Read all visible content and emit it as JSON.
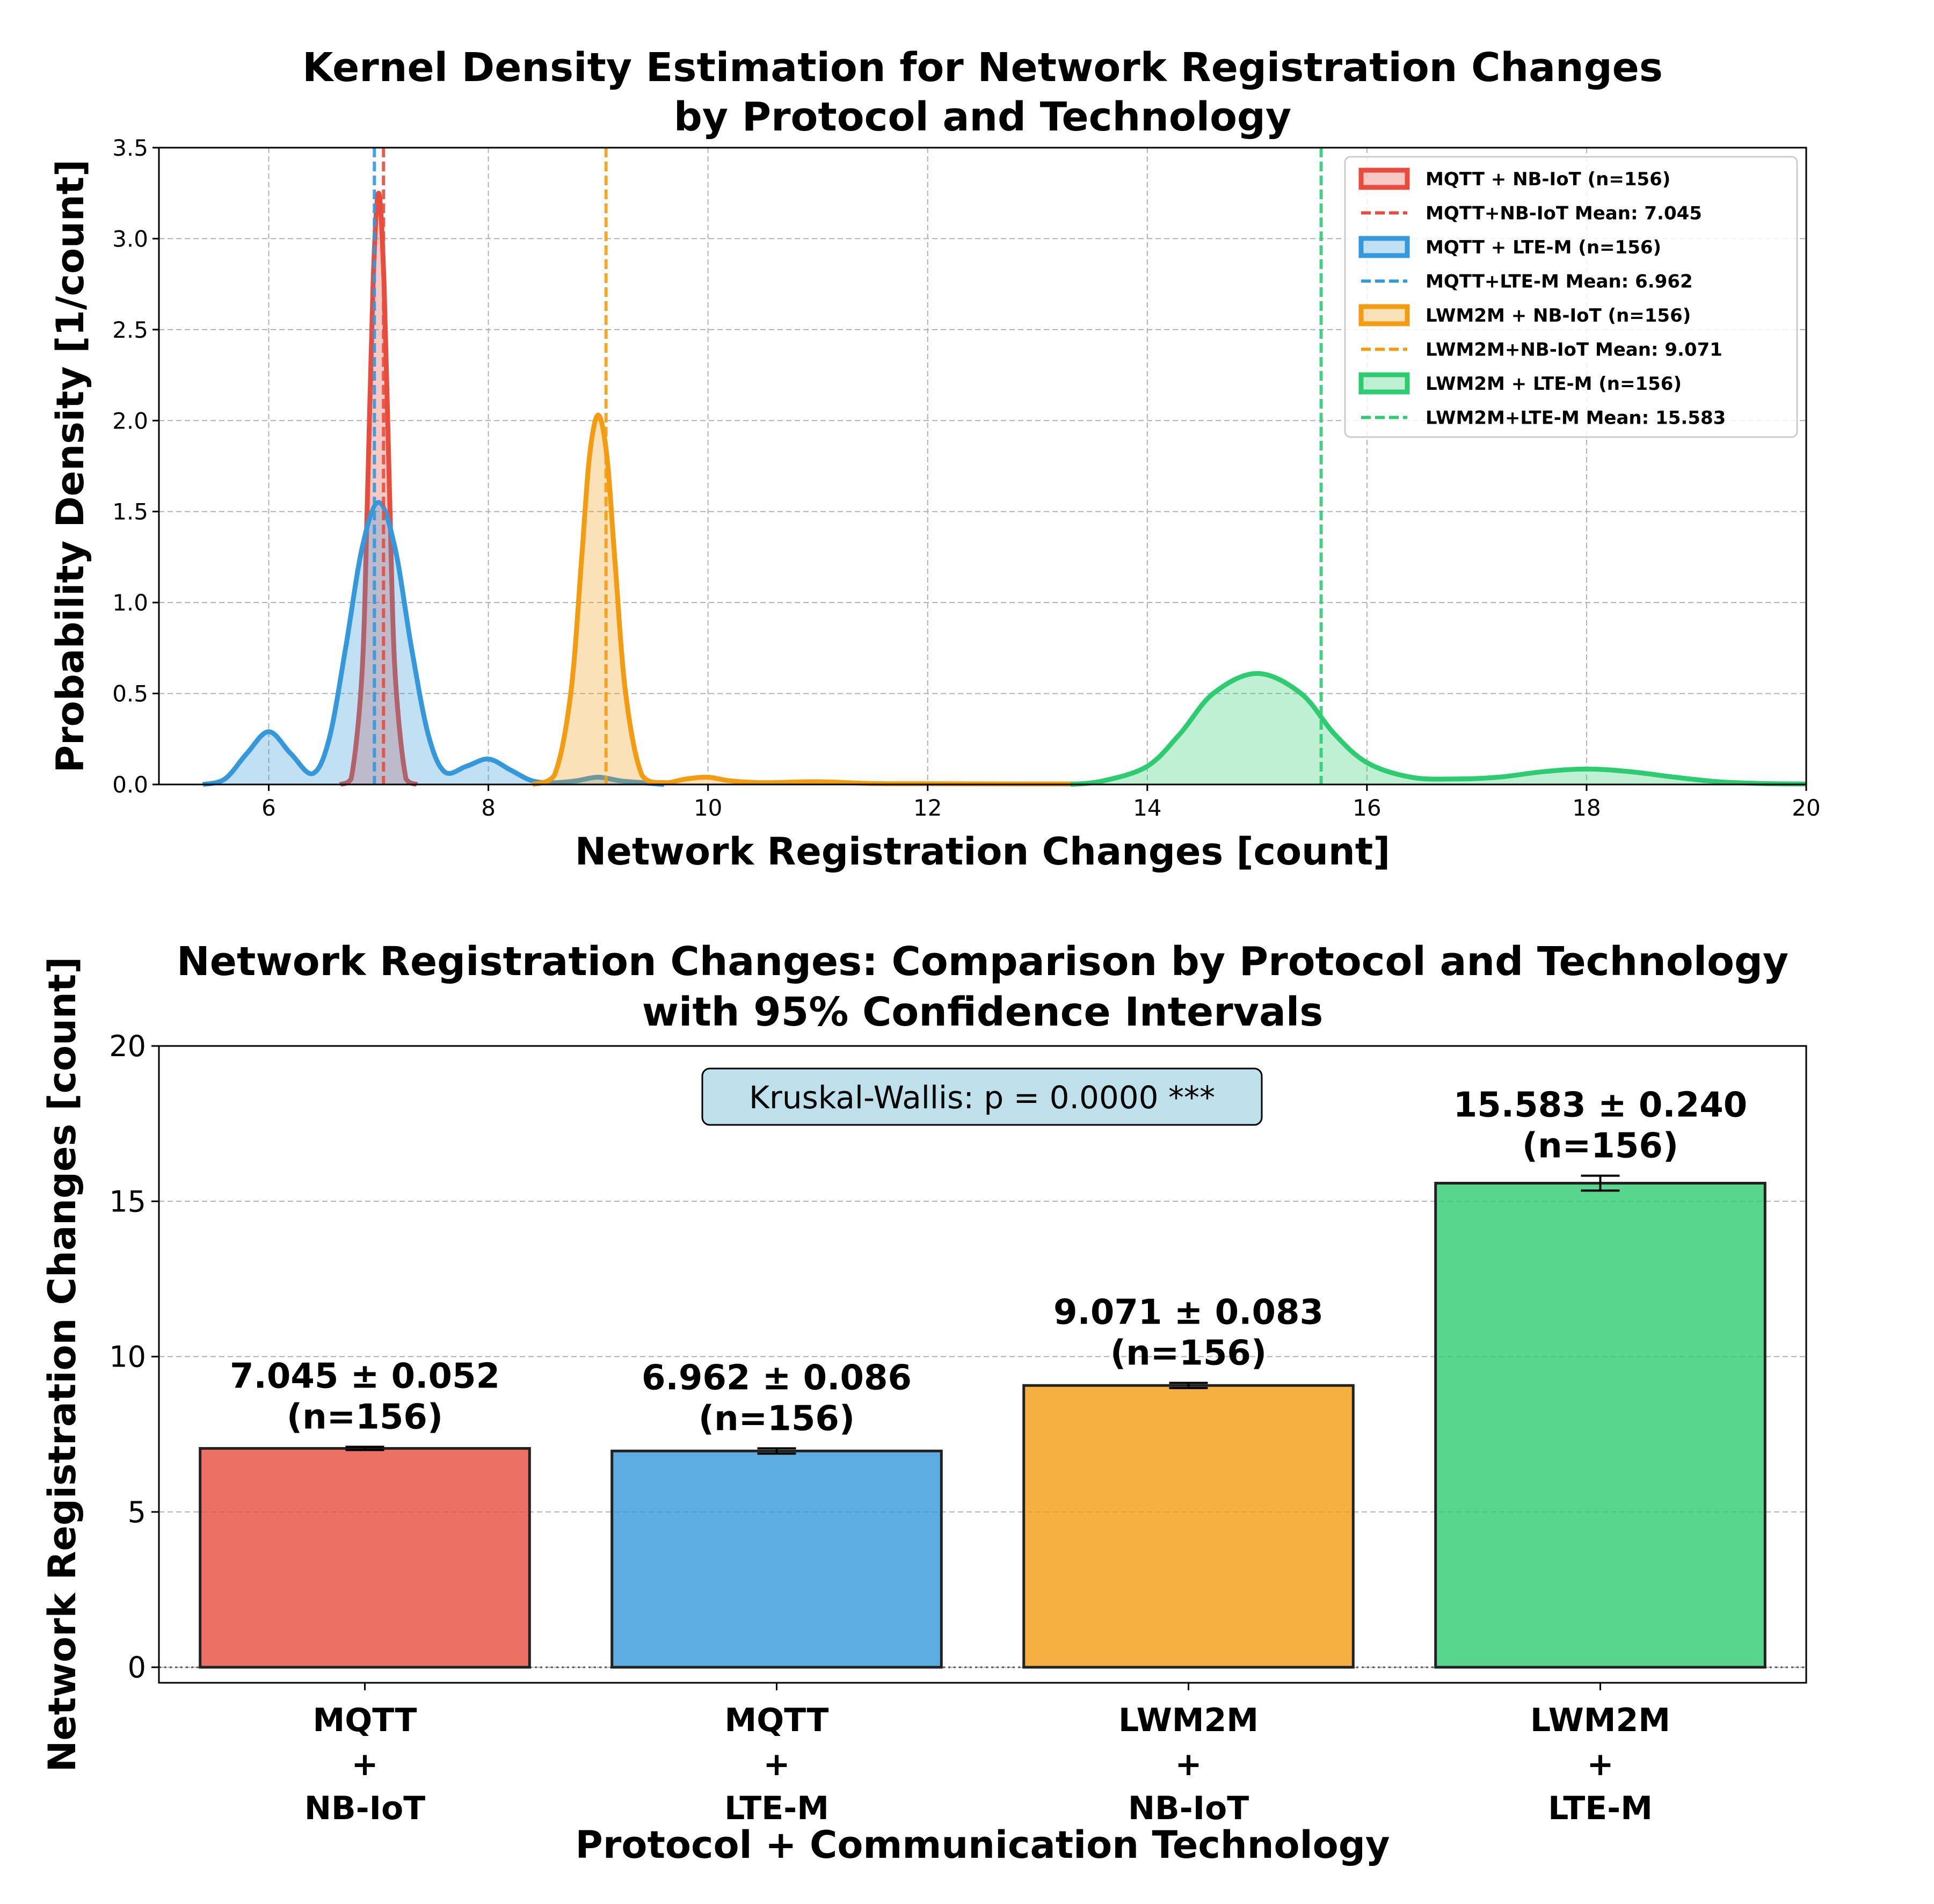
{
  "kde_panel": {
    "title_line1": "Kernel Density Estimation for Network Registration Changes",
    "title_line2": "by Protocol and Technology",
    "xlabel": "Network Registration Changes [count]",
    "ylabel": "Probability Density [1/count]",
    "legend": [
      {
        "label": "MQTT + NB-IoT (n=156)",
        "kind": "patch",
        "color": "#e74c3c"
      },
      {
        "label": "MQTT+NB-IoT Mean: 7.045",
        "kind": "dash",
        "color": "#e74c3c"
      },
      {
        "label": "MQTT + LTE-M (n=156)",
        "kind": "patch",
        "color": "#3498db"
      },
      {
        "label": "MQTT+LTE-M Mean: 6.962",
        "kind": "dash",
        "color": "#3498db"
      },
      {
        "label": "LWM2M + NB-IoT (n=156)",
        "kind": "patch",
        "color": "#f39c12"
      },
      {
        "label": "LWM2M+NB-IoT Mean: 9.071",
        "kind": "dash",
        "color": "#f39c12"
      },
      {
        "label": "LWM2M + LTE-M (n=156)",
        "kind": "patch",
        "color": "#2ecc71"
      },
      {
        "label": "LWM2M+LTE-M Mean: 15.583",
        "kind": "dash",
        "color": "#2ecc71"
      }
    ]
  },
  "bar_panel": {
    "title_line1": "Network Registration Changes: Comparison by Protocol and Technology",
    "title_line2": "with 95% Confidence Intervals",
    "xlabel": "Protocol + Communication Technology",
    "ylabel": "Network Registration Changes [count]",
    "stat_box": "Kruskal-Wallis: p = 0.0000 ***"
  },
  "chart_data": [
    {
      "type": "area",
      "title": "Kernel Density Estimation for Network Registration Changes by Protocol and Technology",
      "xlabel": "Network Registration Changes [count]",
      "ylabel": "Probability Density [1/count]",
      "xlim": [
        5,
        20
      ],
      "ylim": [
        0,
        3.5
      ],
      "xticks": [
        6,
        8,
        10,
        12,
        14,
        16,
        18,
        20
      ],
      "yticks": [
        0.0,
        0.5,
        1.0,
        1.5,
        2.0,
        2.5,
        3.0,
        3.5
      ],
      "grid": true,
      "legend_position": "top-right",
      "series": [
        {
          "name": "MQTT + NB-IoT (n=156)",
          "color": "#e74c3c",
          "mean": 7.045,
          "mean_label": "MQTT+NB-IoT Mean: 7.045",
          "x_range": [
            6.65,
            7.35
          ],
          "points": [
            [
              6.65,
              0
            ],
            [
              6.75,
              0.03
            ],
            [
              6.85,
              0.62
            ],
            [
              6.9,
              1.6
            ],
            [
              6.95,
              2.75
            ],
            [
              7.0,
              3.25
            ],
            [
              7.05,
              2.75
            ],
            [
              7.1,
              1.6
            ],
            [
              7.15,
              0.62
            ],
            [
              7.25,
              0.03
            ],
            [
              7.35,
              0
            ]
          ]
        },
        {
          "name": "MQTT + LTE-M (n=156)",
          "color": "#3498db",
          "mean": 6.962,
          "mean_label": "MQTT+LTE-M Mean: 6.962",
          "x_range": [
            5.4,
            9.6
          ],
          "points": [
            [
              5.4,
              0
            ],
            [
              5.6,
              0.03
            ],
            [
              5.8,
              0.17
            ],
            [
              6.0,
              0.29
            ],
            [
              6.2,
              0.17
            ],
            [
              6.4,
              0.06
            ],
            [
              6.55,
              0.25
            ],
            [
              6.7,
              0.75
            ],
            [
              6.85,
              1.3
            ],
            [
              7.0,
              1.55
            ],
            [
              7.15,
              1.3
            ],
            [
              7.3,
              0.75
            ],
            [
              7.45,
              0.28
            ],
            [
              7.6,
              0.07
            ],
            [
              7.8,
              0.1
            ],
            [
              8.0,
              0.14
            ],
            [
              8.2,
              0.08
            ],
            [
              8.4,
              0.02
            ],
            [
              8.6,
              0.01
            ],
            [
              8.8,
              0.02
            ],
            [
              9.0,
              0.04
            ],
            [
              9.2,
              0.02
            ],
            [
              9.4,
              0.01
            ],
            [
              9.6,
              0
            ]
          ]
        },
        {
          "name": "LWM2M + NB-IoT (n=156)",
          "color": "#f39c12",
          "mean": 9.071,
          "mean_label": "LWM2M+NB-IoT Mean: 9.071",
          "x_range": [
            8.4,
            13.4
          ],
          "points": [
            [
              8.4,
              0
            ],
            [
              8.6,
              0.05
            ],
            [
              8.75,
              0.5
            ],
            [
              8.85,
              1.25
            ],
            [
              8.92,
              1.8
            ],
            [
              9.0,
              2.03
            ],
            [
              9.08,
              1.8
            ],
            [
              9.15,
              1.25
            ],
            [
              9.25,
              0.5
            ],
            [
              9.4,
              0.05
            ],
            [
              9.6,
              0.01
            ],
            [
              9.8,
              0.03
            ],
            [
              10.0,
              0.04
            ],
            [
              10.2,
              0.02
            ],
            [
              10.5,
              0.01
            ],
            [
              11.0,
              0.015
            ],
            [
              11.5,
              0.005
            ],
            [
              12.0,
              0.004
            ],
            [
              13.0,
              0.003
            ],
            [
              13.4,
              0.003
            ]
          ]
        },
        {
          "name": "LWM2M + LTE-M (n=156)",
          "color": "#2ecc71",
          "mean": 15.583,
          "mean_label": "LWM2M+LTE-M Mean: 15.583",
          "x_range": [
            13.3,
            20.0
          ],
          "points": [
            [
              13.3,
              0
            ],
            [
              13.6,
              0.02
            ],
            [
              14.0,
              0.1
            ],
            [
              14.3,
              0.28
            ],
            [
              14.6,
              0.5
            ],
            [
              15.0,
              0.61
            ],
            [
              15.4,
              0.5
            ],
            [
              15.7,
              0.28
            ],
            [
              16.0,
              0.12
            ],
            [
              16.4,
              0.04
            ],
            [
              16.8,
              0.03
            ],
            [
              17.2,
              0.04
            ],
            [
              17.6,
              0.07
            ],
            [
              18.0,
              0.085
            ],
            [
              18.4,
              0.07
            ],
            [
              18.8,
              0.04
            ],
            [
              19.2,
              0.015
            ],
            [
              19.6,
              0.005
            ],
            [
              20.0,
              0.003
            ]
          ]
        }
      ]
    },
    {
      "type": "bar",
      "title": "Network Registration Changes: Comparison by Protocol and Technology with 95% Confidence Intervals",
      "xlabel": "Protocol + Communication Technology",
      "ylabel": "Network Registration Changes [count]",
      "ylim": [
        -0.5,
        20
      ],
      "yticks": [
        0,
        5,
        10,
        15,
        20
      ],
      "grid": true,
      "categories": [
        [
          "MQTT",
          "+",
          "NB-IoT"
        ],
        [
          "MQTT",
          "+",
          "LTE-M"
        ],
        [
          "LWM2M",
          "+",
          "NB-IoT"
        ],
        [
          "LWM2M",
          "+",
          "LTE-M"
        ]
      ],
      "values": [
        7.045,
        6.962,
        9.071,
        15.583
      ],
      "ci": [
        0.052,
        0.086,
        0.083,
        0.24
      ],
      "colors": [
        "#e74c3c",
        "#3498db",
        "#f39c12",
        "#2ecc71"
      ],
      "bar_labels": [
        [
          "7.045 ± 0.052",
          "(n=156)"
        ],
        [
          "6.962 ± 0.086",
          "(n=156)"
        ],
        [
          "9.071 ± 0.083",
          "(n=156)"
        ],
        [
          "15.583 ± 0.240",
          "(n=156)"
        ]
      ],
      "annotation": "Kruskal-Wallis: p = 0.0000 ***"
    }
  ]
}
